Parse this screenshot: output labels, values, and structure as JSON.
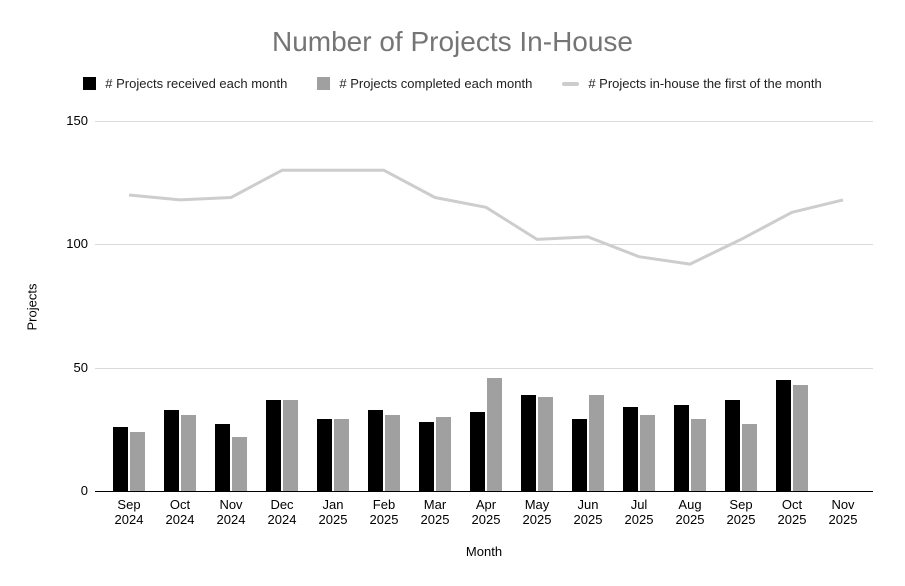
{
  "chart_data": {
    "type": "combo",
    "title": "Number of Projects In-House",
    "xlabel": "Month",
    "ylabel": "Projects",
    "ylim": [
      0,
      150
    ],
    "yticks": [
      0,
      50,
      100,
      150
    ],
    "grid": true,
    "legend_position": "top",
    "background_color": "#ffffff",
    "title_color": "#757575",
    "gridline_color": "#dadada",
    "axis_text_color": "#000000",
    "categories": [
      "Sep 2024",
      "Oct 2024",
      "Nov 2024",
      "Dec 2024",
      "Jan 2025",
      "Feb 2025",
      "Mar 2025",
      "Apr 2025",
      "May 2025",
      "Jun 2025",
      "Jul 2025",
      "Aug 2025",
      "Sep 2025",
      "Oct 2025",
      "Nov 2025"
    ],
    "series": [
      {
        "name": "# Projects received each month",
        "type": "bar",
        "color": "#000000",
        "values": [
          26,
          33,
          27,
          37,
          29,
          33,
          28,
          32,
          39,
          29,
          34,
          35,
          37,
          45,
          null
        ]
      },
      {
        "name": "# Projects completed each month",
        "type": "bar",
        "color": "#a0a0a0",
        "values": [
          24,
          31,
          22,
          37,
          29,
          31,
          30,
          46,
          38,
          39,
          31,
          29,
          27,
          43,
          null
        ]
      },
      {
        "name": "# Projects in-house the first of the month",
        "type": "line",
        "color": "#cdcdcd",
        "values": [
          120,
          118,
          119,
          130,
          130,
          130,
          119,
          115,
          102,
          103,
          95,
          92,
          102,
          113,
          118
        ]
      }
    ]
  }
}
